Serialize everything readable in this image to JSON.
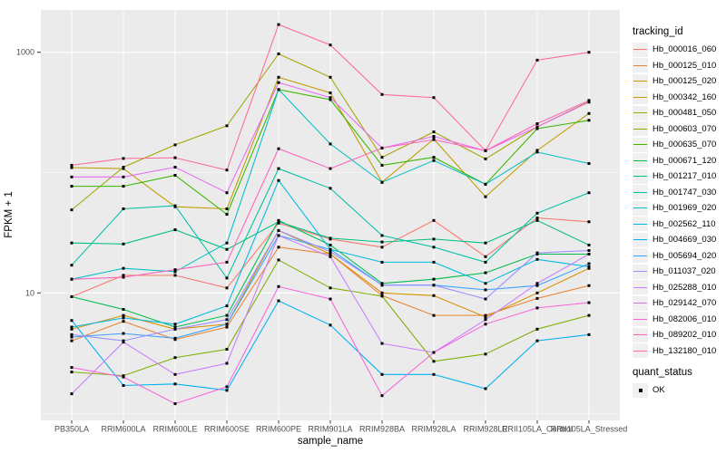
{
  "chart_data": {
    "type": "line",
    "title": "",
    "xlabel": "sample_name",
    "ylabel": "FPKM + 1",
    "y_scale": "log10",
    "ylim": [
      0.87,
      2240
    ],
    "y_breaks": [
      10,
      1000
    ],
    "y_break_labels": [
      "10",
      "1000"
    ],
    "y_minor_breaks": [
      1,
      100
    ],
    "grid": true,
    "legend_position": "right",
    "categories": [
      "PB350LA",
      "RRIM600LA",
      "RRIM600LE",
      "RRIM600SE",
      "RRIM600PE",
      "RRIM901LA",
      "RRIM928BA",
      "RRIM928LA",
      "RRIM928LE",
      "RRII105LA_Control",
      "RRII105LA_Stressed"
    ],
    "series": [
      {
        "name": "Hb_000016_060",
        "color": "#F8766D",
        "values": [
          9.3,
          14,
          14,
          11,
          38,
          28,
          24,
          40,
          20,
          42,
          39
        ]
      },
      {
        "name": "Hb_000125_010",
        "color": "#EA8331",
        "values": [
          4.0,
          5.8,
          4.1,
          5.2,
          24,
          21,
          9.5,
          6.5,
          6.5,
          9.0,
          11.5
        ]
      },
      {
        "name": "Hb_000125_020",
        "color": "#D89000",
        "values": [
          5.0,
          6.5,
          5.0,
          5.5,
          33,
          21,
          10,
          9.5,
          6.3,
          10,
          16
        ]
      },
      {
        "name": "Hb_000342_160",
        "color": "#C09B00",
        "values": [
          110,
          108,
          52,
          50,
          620,
          460,
          83,
          190,
          63,
          153,
          310
        ]
      },
      {
        "name": "Hb_000481_050",
        "color": "#A3A500",
        "values": [
          49,
          111,
          170,
          245,
          970,
          620,
          134,
          218,
          130,
          240,
          390
        ]
      },
      {
        "name": "Hb_000603_070",
        "color": "#7CAE00",
        "values": [
          2.2,
          2.05,
          2.9,
          3.4,
          18.8,
          11,
          9.4,
          2.7,
          3.1,
          5.0,
          6.5
        ]
      },
      {
        "name": "Hb_000635_070",
        "color": "#39B600",
        "values": [
          77,
          77,
          95,
          45,
          490,
          404,
          115,
          134,
          80,
          232,
          272
        ]
      },
      {
        "name": "Hb_000671_120",
        "color": "#00BB4E",
        "values": [
          9.3,
          7.3,
          5.2,
          6.5,
          40,
          25,
          12,
          13,
          14.7,
          21,
          21
        ]
      },
      {
        "name": "Hb_001217_010",
        "color": "#00BF7D",
        "values": [
          26,
          25.5,
          33.5,
          23,
          39,
          28.5,
          26.5,
          28,
          26,
          40,
          25
        ]
      },
      {
        "name": "Hb_001747_030",
        "color": "#00C1A3",
        "values": [
          17,
          50,
          53,
          13.3,
          108,
          74,
          30,
          24,
          18,
          46,
          68
        ]
      },
      {
        "name": "Hb_001969_020",
        "color": "#00BFC4",
        "values": [
          13,
          16,
          15,
          26,
          490,
          173,
          83,
          126,
          80,
          148,
          119
        ]
      },
      {
        "name": "Hb_002562_110",
        "color": "#00BAE0",
        "values": [
          5.2,
          6.2,
          5.5,
          7.8,
          86,
          23,
          18,
          18,
          12,
          19,
          16.5
        ]
      },
      {
        "name": "Hb_004669_030",
        "color": "#00B0F6",
        "values": [
          5.9,
          1.7,
          1.75,
          1.55,
          8.6,
          5.4,
          2.1,
          2.1,
          1.6,
          4.0,
          4.5
        ]
      },
      {
        "name": "Hb_005694_020",
        "color": "#35A2FF",
        "values": [
          4.3,
          4.6,
          4.2,
          5.5,
          30,
          23,
          11.6,
          11.6,
          10.6,
          11.5,
          17.5
        ]
      },
      {
        "name": "Hb_011037_020",
        "color": "#9590FF",
        "values": [
          4.5,
          4.0,
          5.0,
          6.0,
          33,
          22,
          11.6,
          11.6,
          8.9,
          21.5,
          22.5
        ]
      },
      {
        "name": "Hb_025288_010",
        "color": "#C77CFF",
        "values": [
          1.45,
          3.9,
          2.1,
          2.6,
          30,
          20,
          3.8,
          3.2,
          6.0,
          12,
          21
        ]
      },
      {
        "name": "Hb_029142_070",
        "color": "#E76BF3",
        "values": [
          92,
          92,
          111,
          68,
          560,
          420,
          160,
          200,
          152,
          240,
          385
        ]
      },
      {
        "name": "Hb_082006_010",
        "color": "#FA62DB",
        "values": [
          2.4,
          2.0,
          1.2,
          1.66,
          11.3,
          8.9,
          1.4,
          3.2,
          5.5,
          7.5,
          8.3
        ]
      },
      {
        "name": "Hb_089202_010",
        "color": "#FF62BC",
        "values": [
          13,
          13.5,
          15.6,
          18,
          158,
          108,
          160,
          188,
          152,
          255,
          398
        ]
      },
      {
        "name": "Hb_132180_010",
        "color": "#FF6A98",
        "values": [
          115,
          131,
          133,
          105,
          1700,
          1150,
          446,
          420,
          152,
          860,
          1000
        ]
      }
    ],
    "point_marker": {
      "shape": "square",
      "color": "#000000"
    }
  },
  "axes": {
    "y_label": "FPKM + 1",
    "x_label": "sample_name"
  },
  "legend": {
    "tracking_title": "tracking_id",
    "quant_title": "quant_status",
    "quant_items": [
      {
        "label": "OK"
      }
    ]
  },
  "colors": {
    "panel_background": "#EBEBEB",
    "gridline": "#FFFFFF",
    "tick_text": "#4D4D4D",
    "tick_mark": "#333333",
    "legend_key_background": "#F0F0F0",
    "point": "#000000"
  }
}
